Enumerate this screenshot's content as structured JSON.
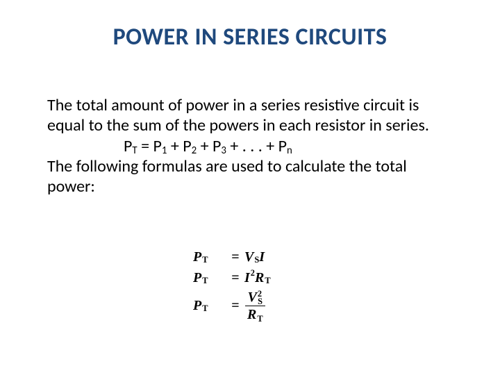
{
  "title": {
    "text": "POWER IN SERIES CIRCUITS",
    "color": "#1f497d"
  },
  "body": {
    "paragraph1": "The total amount of power in a series resistive circuit is equal to the sum of the powers in each resistor in series.",
    "sum_formula": {
      "lhs_base": "P",
      "lhs_sub": "T",
      "eq": " = ",
      "t1_base": "P",
      "t1_sub": "1",
      "plus1": " + ",
      "t2_base": "P",
      "t2_sub": "2",
      "plus2": " + ",
      "t3_base": "P",
      "t3_sub": "3",
      "plus3": " + . . . + ",
      "tn_base": "P",
      "tn_sub": "n"
    },
    "paragraph2": "The following formulas are used to calculate the total power:"
  },
  "equations": {
    "row1": {
      "lhs_base": "P",
      "lhs_sub": "T",
      "eq": "=",
      "r1_base": "V",
      "r1_sub": "S",
      "r2_base": "I"
    },
    "row2": {
      "lhs_base": "P",
      "lhs_sub": "T",
      "eq": "=",
      "i_base": "I",
      "i_sup": "2",
      "r_base": "R",
      "r_sub": "T"
    },
    "row3": {
      "lhs_base": "P",
      "lhs_sub": "T",
      "eq": "=",
      "num_base": "V",
      "num_sub": "S",
      "num_sup": "2",
      "den_base": "R",
      "den_sub": "T"
    }
  }
}
